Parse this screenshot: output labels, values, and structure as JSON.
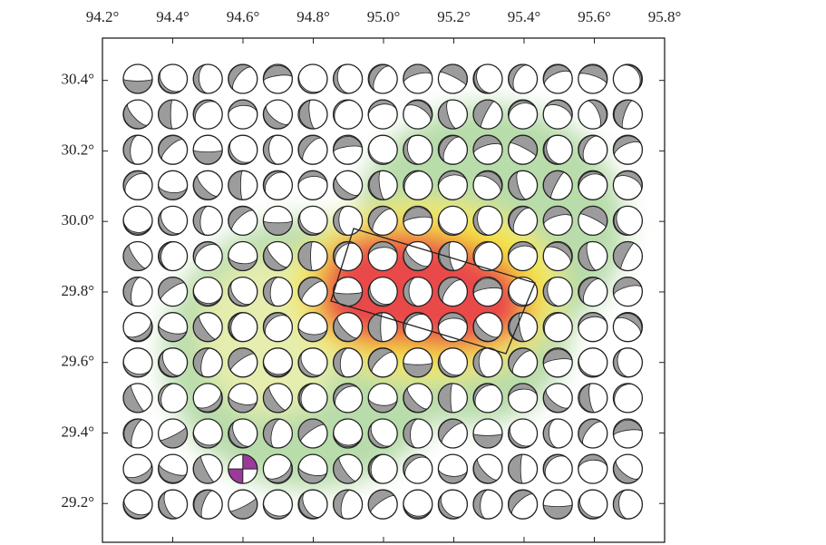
{
  "map": {
    "xlim": [
      94.2,
      95.8
    ],
    "ylim": [
      29.09,
      30.52
    ],
    "xticks": [
      {
        "value": 94.2,
        "label": "94.2°"
      },
      {
        "value": 94.4,
        "label": "94.4°"
      },
      {
        "value": 94.6,
        "label": "94.6°"
      },
      {
        "value": 94.8,
        "label": "94.8°"
      },
      {
        "value": 95.0,
        "label": "95.0°"
      },
      {
        "value": 95.2,
        "label": "95.2°"
      },
      {
        "value": 95.4,
        "label": "95.4°"
      },
      {
        "value": 95.6,
        "label": "95.6°"
      },
      {
        "value": 95.8,
        "label": "95.8°"
      }
    ],
    "yticks": [
      {
        "value": 30.4,
        "label": "30.4°"
      },
      {
        "value": 30.2,
        "label": "30.2°"
      },
      {
        "value": 30.0,
        "label": "30.0°"
      },
      {
        "value": 29.8,
        "label": "29.8°"
      },
      {
        "value": 29.6,
        "label": "29.6°"
      },
      {
        "value": 29.4,
        "label": "29.4°"
      },
      {
        "value": 29.2,
        "label": "29.2°"
      }
    ]
  }
}
